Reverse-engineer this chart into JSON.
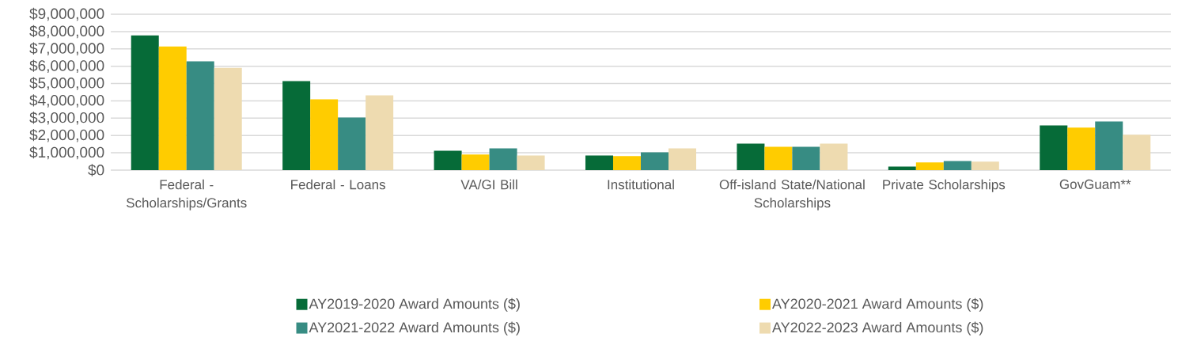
{
  "chart_data": {
    "type": "bar",
    "categories": [
      "Federal - Scholarships/Grants",
      "Federal - Loans",
      "VA/GI Bill",
      "Institutional",
      "Off-island State/National Scholarships",
      "Private Scholarships",
      "GovGuam**"
    ],
    "series": [
      {
        "name": "AY2019-2020 Award Amounts ($)",
        "color": "#066b38",
        "values": [
          7780000,
          5140000,
          1120000,
          850000,
          1530000,
          210000,
          2580000
        ]
      },
      {
        "name": "AY2020-2021 Award Amounts ($)",
        "color": "#ffcc00",
        "values": [
          7140000,
          4090000,
          900000,
          810000,
          1350000,
          440000,
          2450000
        ]
      },
      {
        "name": "AY2021-2022 Award Amounts ($)",
        "color": "#378c83",
        "values": [
          6280000,
          3040000,
          1260000,
          1030000,
          1350000,
          530000,
          2810000
        ]
      },
      {
        "name": "AY2022-2023 Award Amounts ($)",
        "color": "#eedbb0",
        "values": [
          5910000,
          4320000,
          850000,
          1260000,
          1530000,
          490000,
          2040000
        ]
      }
    ],
    "ylim": [
      0,
      9000000
    ],
    "yticks": [
      {
        "value": 0,
        "label": "$0"
      },
      {
        "value": 1000000,
        "label": "$1,000,000"
      },
      {
        "value": 2000000,
        "label": "$2,000,000"
      },
      {
        "value": 3000000,
        "label": "$3,000,000"
      },
      {
        "value": 4000000,
        "label": "$4,000,000"
      },
      {
        "value": 5000000,
        "label": "$5,000,000"
      },
      {
        "value": 6000000,
        "label": "$6,000,000"
      },
      {
        "value": 7000000,
        "label": "$7,000,000"
      },
      {
        "value": 8000000,
        "label": "$8,000,000"
      },
      {
        "value": 9000000,
        "label": "$9,000,000"
      }
    ],
    "grid": "y",
    "legend": "bottom"
  }
}
